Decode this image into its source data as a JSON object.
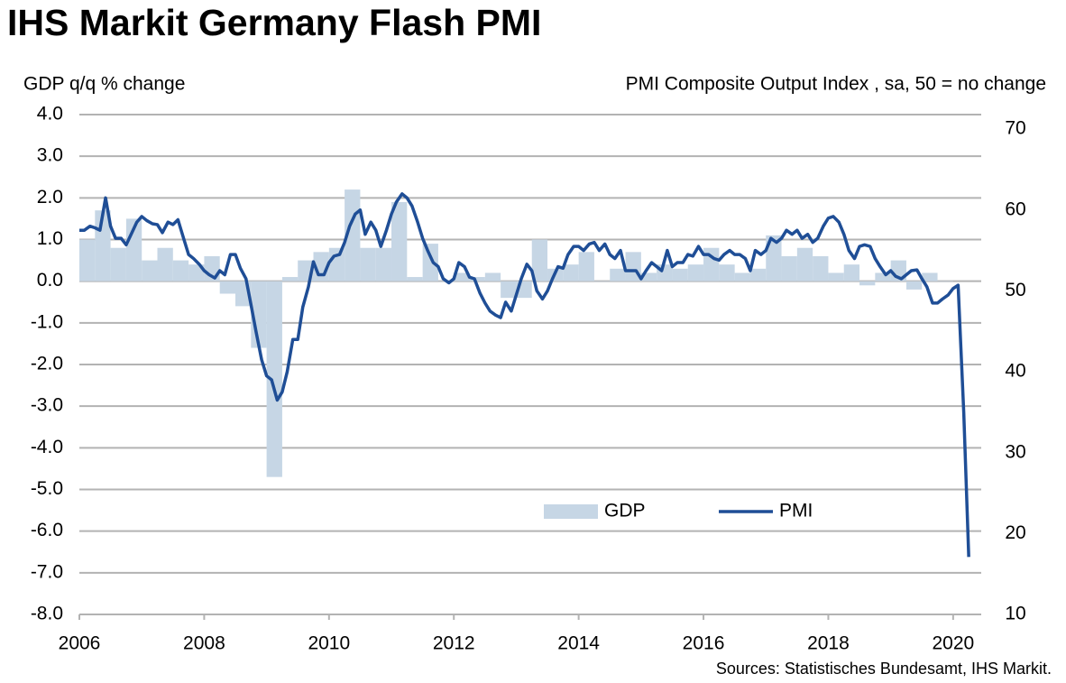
{
  "chart_data": {
    "type": "bar-line",
    "title": "IHS Markit Germany Flash PMI",
    "y_label": "GDP q/q % change",
    "y2_label": "PMI Composite  Output  Index , sa, 50 = no change",
    "source": "Sources: Statistisches Bundesamt, IHS Markit.",
    "xlim": [
      2006,
      2020.45
    ],
    "xticks": [
      2006,
      2008,
      2010,
      2012,
      2014,
      2016,
      2018,
      2020
    ],
    "ylim": [
      -8,
      4
    ],
    "yticks": [
      {
        "value": 4,
        "label": "4.0"
      },
      {
        "value": 3,
        "label": "3.0"
      },
      {
        "value": 2,
        "label": "2.0"
      },
      {
        "value": 1,
        "label": "1.0"
      },
      {
        "value": 0,
        "label": "0.0"
      },
      {
        "value": -1,
        "label": "-1.0"
      },
      {
        "value": -2,
        "label": "-2.0"
      },
      {
        "value": -3,
        "label": "-3.0"
      },
      {
        "value": -4,
        "label": "-4.0"
      },
      {
        "value": -5,
        "label": "-5.0"
      },
      {
        "value": -6,
        "label": "-6.0"
      },
      {
        "value": -7,
        "label": "-7.0"
      },
      {
        "value": -8,
        "label": "-8.0"
      }
    ],
    "y2lim": [
      10,
      71.8
    ],
    "y2ticks": [
      70,
      60,
      50,
      40,
      30,
      20,
      10
    ],
    "grid": true,
    "series": [
      {
        "name": "GDP",
        "type": "bar",
        "color": "#c6d6e5",
        "x": [
          2006.125,
          2006.375,
          2006.625,
          2006.875,
          2007.125,
          2007.375,
          2007.625,
          2007.875,
          2008.125,
          2008.375,
          2008.625,
          2008.875,
          2009.125,
          2009.375,
          2009.625,
          2009.875,
          2010.125,
          2010.375,
          2010.625,
          2010.875,
          2011.125,
          2011.375,
          2011.625,
          2011.875,
          2012.125,
          2012.375,
          2012.625,
          2012.875,
          2013.125,
          2013.375,
          2013.625,
          2013.875,
          2014.125,
          2014.375,
          2014.625,
          2014.875,
          2015.125,
          2015.375,
          2015.625,
          2015.875,
          2016.125,
          2016.375,
          2016.625,
          2016.875,
          2017.125,
          2017.375,
          2017.625,
          2017.875,
          2018.125,
          2018.375,
          2018.625,
          2018.875,
          2019.125,
          2019.375,
          2019.625,
          2019.875
        ],
        "values": [
          1.0,
          1.7,
          0.8,
          1.5,
          0.5,
          0.8,
          0.5,
          0.4,
          0.6,
          -0.3,
          -0.6,
          -1.6,
          -4.7,
          0.1,
          0.5,
          0.7,
          0.8,
          2.2,
          0.8,
          0.8,
          1.9,
          0.1,
          0.9,
          0.0,
          0.2,
          0.1,
          0.2,
          -0.4,
          -0.4,
          1.0,
          0.3,
          0.4,
          0.7,
          0.0,
          0.3,
          0.7,
          0.2,
          0.4,
          0.3,
          0.4,
          0.8,
          0.4,
          0.2,
          0.3,
          1.1,
          0.6,
          0.8,
          0.6,
          0.2,
          0.4,
          -0.1,
          0.2,
          0.5,
          -0.2,
          0.2,
          0.0
        ]
      },
      {
        "name": "PMI",
        "type": "line",
        "axis": "y2",
        "color": "#1f4e96",
        "x": [
          2006.0,
          2006.08,
          2006.17,
          2006.25,
          2006.33,
          2006.42,
          2006.5,
          2006.58,
          2006.67,
          2006.75,
          2006.83,
          2006.92,
          2007.0,
          2007.08,
          2007.17,
          2007.25,
          2007.33,
          2007.42,
          2007.5,
          2007.58,
          2007.67,
          2007.75,
          2007.83,
          2007.92,
          2008.0,
          2008.08,
          2008.17,
          2008.25,
          2008.33,
          2008.42,
          2008.5,
          2008.58,
          2008.67,
          2008.75,
          2008.83,
          2008.92,
          2009.0,
          2009.08,
          2009.17,
          2009.25,
          2009.33,
          2009.42,
          2009.5,
          2009.58,
          2009.67,
          2009.75,
          2009.83,
          2009.92,
          2010.0,
          2010.08,
          2010.17,
          2010.25,
          2010.33,
          2010.42,
          2010.5,
          2010.58,
          2010.67,
          2010.75,
          2010.83,
          2010.92,
          2011.0,
          2011.08,
          2011.17,
          2011.25,
          2011.33,
          2011.42,
          2011.5,
          2011.58,
          2011.67,
          2011.75,
          2011.83,
          2011.92,
          2012.0,
          2012.08,
          2012.17,
          2012.25,
          2012.33,
          2012.42,
          2012.5,
          2012.58,
          2012.67,
          2012.75,
          2012.83,
          2012.92,
          2013.0,
          2013.08,
          2013.17,
          2013.25,
          2013.33,
          2013.42,
          2013.5,
          2013.58,
          2013.67,
          2013.75,
          2013.83,
          2013.92,
          2014.0,
          2014.08,
          2014.17,
          2014.25,
          2014.33,
          2014.42,
          2014.5,
          2014.58,
          2014.67,
          2014.75,
          2014.83,
          2014.92,
          2015.0,
          2015.08,
          2015.17,
          2015.25,
          2015.33,
          2015.42,
          2015.5,
          2015.58,
          2015.67,
          2015.75,
          2015.83,
          2015.92,
          2016.0,
          2016.08,
          2016.17,
          2016.25,
          2016.33,
          2016.42,
          2016.5,
          2016.58,
          2016.67,
          2016.75,
          2016.83,
          2016.92,
          2017.0,
          2017.08,
          2017.17,
          2017.25,
          2017.33,
          2017.42,
          2017.5,
          2017.58,
          2017.67,
          2017.75,
          2017.83,
          2017.92,
          2018.0,
          2018.08,
          2018.17,
          2018.25,
          2018.33,
          2018.42,
          2018.5,
          2018.58,
          2018.67,
          2018.75,
          2018.83,
          2018.92,
          2019.0,
          2019.08,
          2019.17,
          2019.25,
          2019.33,
          2019.42,
          2019.5,
          2019.58,
          2019.67,
          2019.75,
          2019.83,
          2019.92,
          2020.0,
          2020.08,
          2020.17,
          2020.25
        ],
        "values": [
          57.5,
          57.5,
          58,
          57.8,
          57.5,
          61.5,
          58,
          56.5,
          56.5,
          55.7,
          57,
          58.5,
          59.2,
          58.7,
          58.3,
          58.2,
          57.2,
          58.5,
          58.2,
          58.8,
          56.5,
          54.5,
          54,
          53.3,
          52.5,
          52,
          51.6,
          52.5,
          52,
          54.5,
          54.5,
          52.8,
          51.5,
          48.3,
          45,
          41.5,
          39.5,
          39,
          36.5,
          37.5,
          40,
          44,
          44,
          48,
          50.5,
          53.6,
          52,
          52,
          53.5,
          54.3,
          54.5,
          56,
          58,
          59.5,
          60,
          57,
          58.5,
          57.5,
          55.5,
          57.5,
          59.5,
          61,
          62,
          61.5,
          60.5,
          58.5,
          56.5,
          55,
          53.5,
          53,
          51.5,
          51,
          51.5,
          53.5,
          53,
          51.7,
          51.5,
          49.7,
          48.5,
          47.5,
          47,
          46.7,
          48.6,
          47.5,
          49.5,
          51.5,
          53.3,
          52.5,
          50,
          49,
          50,
          51.5,
          53,
          52.8,
          54.5,
          55.5,
          55.5,
          55,
          55.8,
          56,
          55,
          55.8,
          54.5,
          54,
          55,
          52.5,
          52.5,
          52.5,
          51.5,
          52.5,
          53.5,
          53,
          52.5,
          55,
          53,
          53.5,
          53.5,
          54.5,
          54.3,
          55.5,
          54.5,
          54.5,
          54,
          53.8,
          54.5,
          55,
          54.5,
          54.5,
          54,
          52.5,
          55,
          54.5,
          55,
          56.5,
          56,
          56.5,
          57.5,
          57,
          57.5,
          56.5,
          57,
          56,
          56.5,
          58,
          59,
          59.2,
          58.5,
          57,
          55,
          54,
          55.5,
          55.7,
          55.5,
          54,
          53,
          52,
          52.5,
          51.8,
          51.5,
          52,
          52.5,
          52.6,
          51.5,
          50.5,
          48.5,
          48.5,
          49,
          49.5,
          50.3,
          50.7,
          35,
          17.1
        ]
      }
    ]
  }
}
